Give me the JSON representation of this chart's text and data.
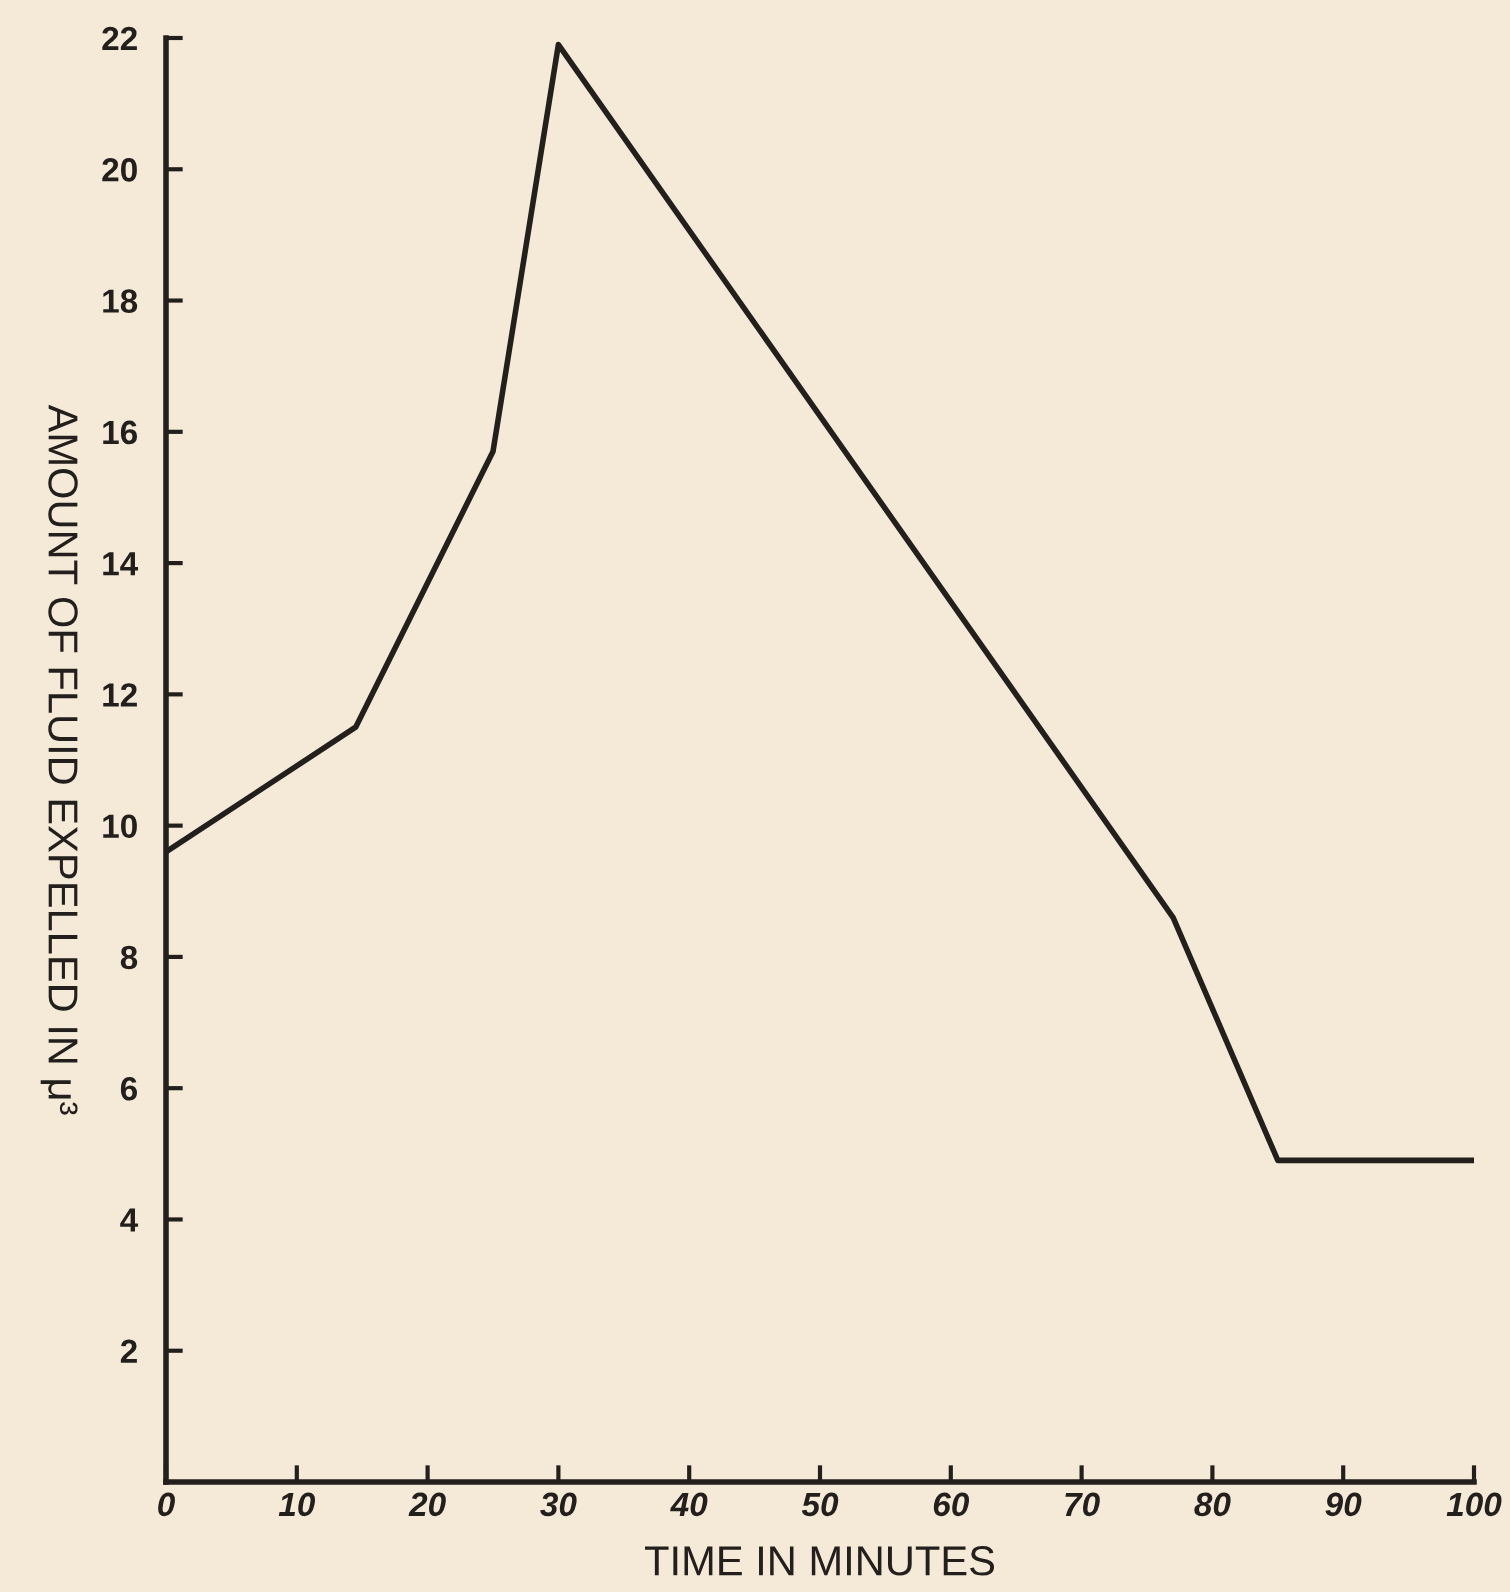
{
  "chart_data": {
    "type": "line",
    "xlabel": "TIME IN MINUTES",
    "ylabel": "AMOUNT OF FLUID EXPELLED IN μ³",
    "x": [
      0,
      14.5,
      25,
      30,
      77,
      85,
      100
    ],
    "series": [
      {
        "color": "#231f1c",
        "values": [
          9.6,
          11.5,
          15.7,
          21.9,
          8.6,
          4.9,
          4.9
        ]
      }
    ],
    "xlim": [
      0,
      100
    ],
    "xticks": [
      0,
      10,
      20,
      30,
      40,
      50,
      60,
      70,
      80,
      90,
      100
    ],
    "ylim": [
      0,
      22
    ],
    "yticks": [
      2,
      4,
      6,
      8,
      10,
      12,
      14,
      16,
      18,
      20,
      22
    ],
    "grid": false,
    "legend": false,
    "marker": "none",
    "line_style": "solid"
  }
}
